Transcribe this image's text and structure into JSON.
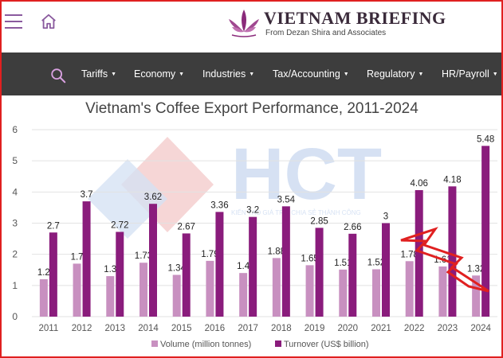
{
  "header": {
    "brand_name": "VIETNAM BRIEFING",
    "brand_sub": "From Dezan Shira and Associates",
    "brand_color": "#8a2a7a"
  },
  "nav": {
    "items": [
      {
        "label": "Tariffs"
      },
      {
        "label": "Economy"
      },
      {
        "label": "Industries"
      },
      {
        "label": "Tax/Accounting"
      },
      {
        "label": "Regulatory"
      },
      {
        "label": "HR/Payroll"
      }
    ],
    "caret": "▼"
  },
  "watermark": {
    "text": "HCT",
    "tagline": "KIẾN TẠO GIÁ TRỊ - CHIA SẺ THÀNH CÔNG"
  },
  "chart_data": {
    "type": "bar",
    "title": "Vietnam's Coffee Export Performance, 2011-2024",
    "categories": [
      "2011",
      "2012",
      "2013",
      "2014",
      "2015",
      "2016",
      "2017",
      "2018",
      "2019",
      "2020",
      "2021",
      "2022",
      "2023",
      "2024"
    ],
    "series": [
      {
        "name": "Volume (million tonnes)",
        "color": "#c890c0",
        "values": [
          1.2,
          1.7,
          1.3,
          1.73,
          1.34,
          1.79,
          1.4,
          1.88,
          1.65,
          1.51,
          1.52,
          1.78,
          1.61,
          1.32
        ],
        "labels": [
          "1.2",
          "1.7",
          "1.3",
          "1.73",
          "1.34",
          "1.79",
          "1.4",
          "1.88",
          "1.65",
          "1.51",
          "1.52",
          "1.78",
          "1.61",
          "1.32"
        ]
      },
      {
        "name": "Turnover (US$ billion)",
        "color": "#8a1c7c",
        "values": [
          2.7,
          3.7,
          2.72,
          3.62,
          2.67,
          3.36,
          3.2,
          3.54,
          2.85,
          2.66,
          3,
          4.06,
          4.18,
          5.48
        ],
        "labels": [
          "2.7",
          "3.7",
          "2.72",
          "3.62",
          "2.67",
          "3.36",
          "3.2",
          "3.54",
          "2.85",
          "2.66",
          "3",
          "4.06",
          "4.18",
          "5.48"
        ]
      }
    ],
    "ylim": [
      0,
      6
    ],
    "yticks": [
      "0",
      "1",
      "2",
      "3",
      "4",
      "5",
      "6"
    ],
    "grid": true,
    "legend": "bottom",
    "annotation_color": "#e02020"
  }
}
